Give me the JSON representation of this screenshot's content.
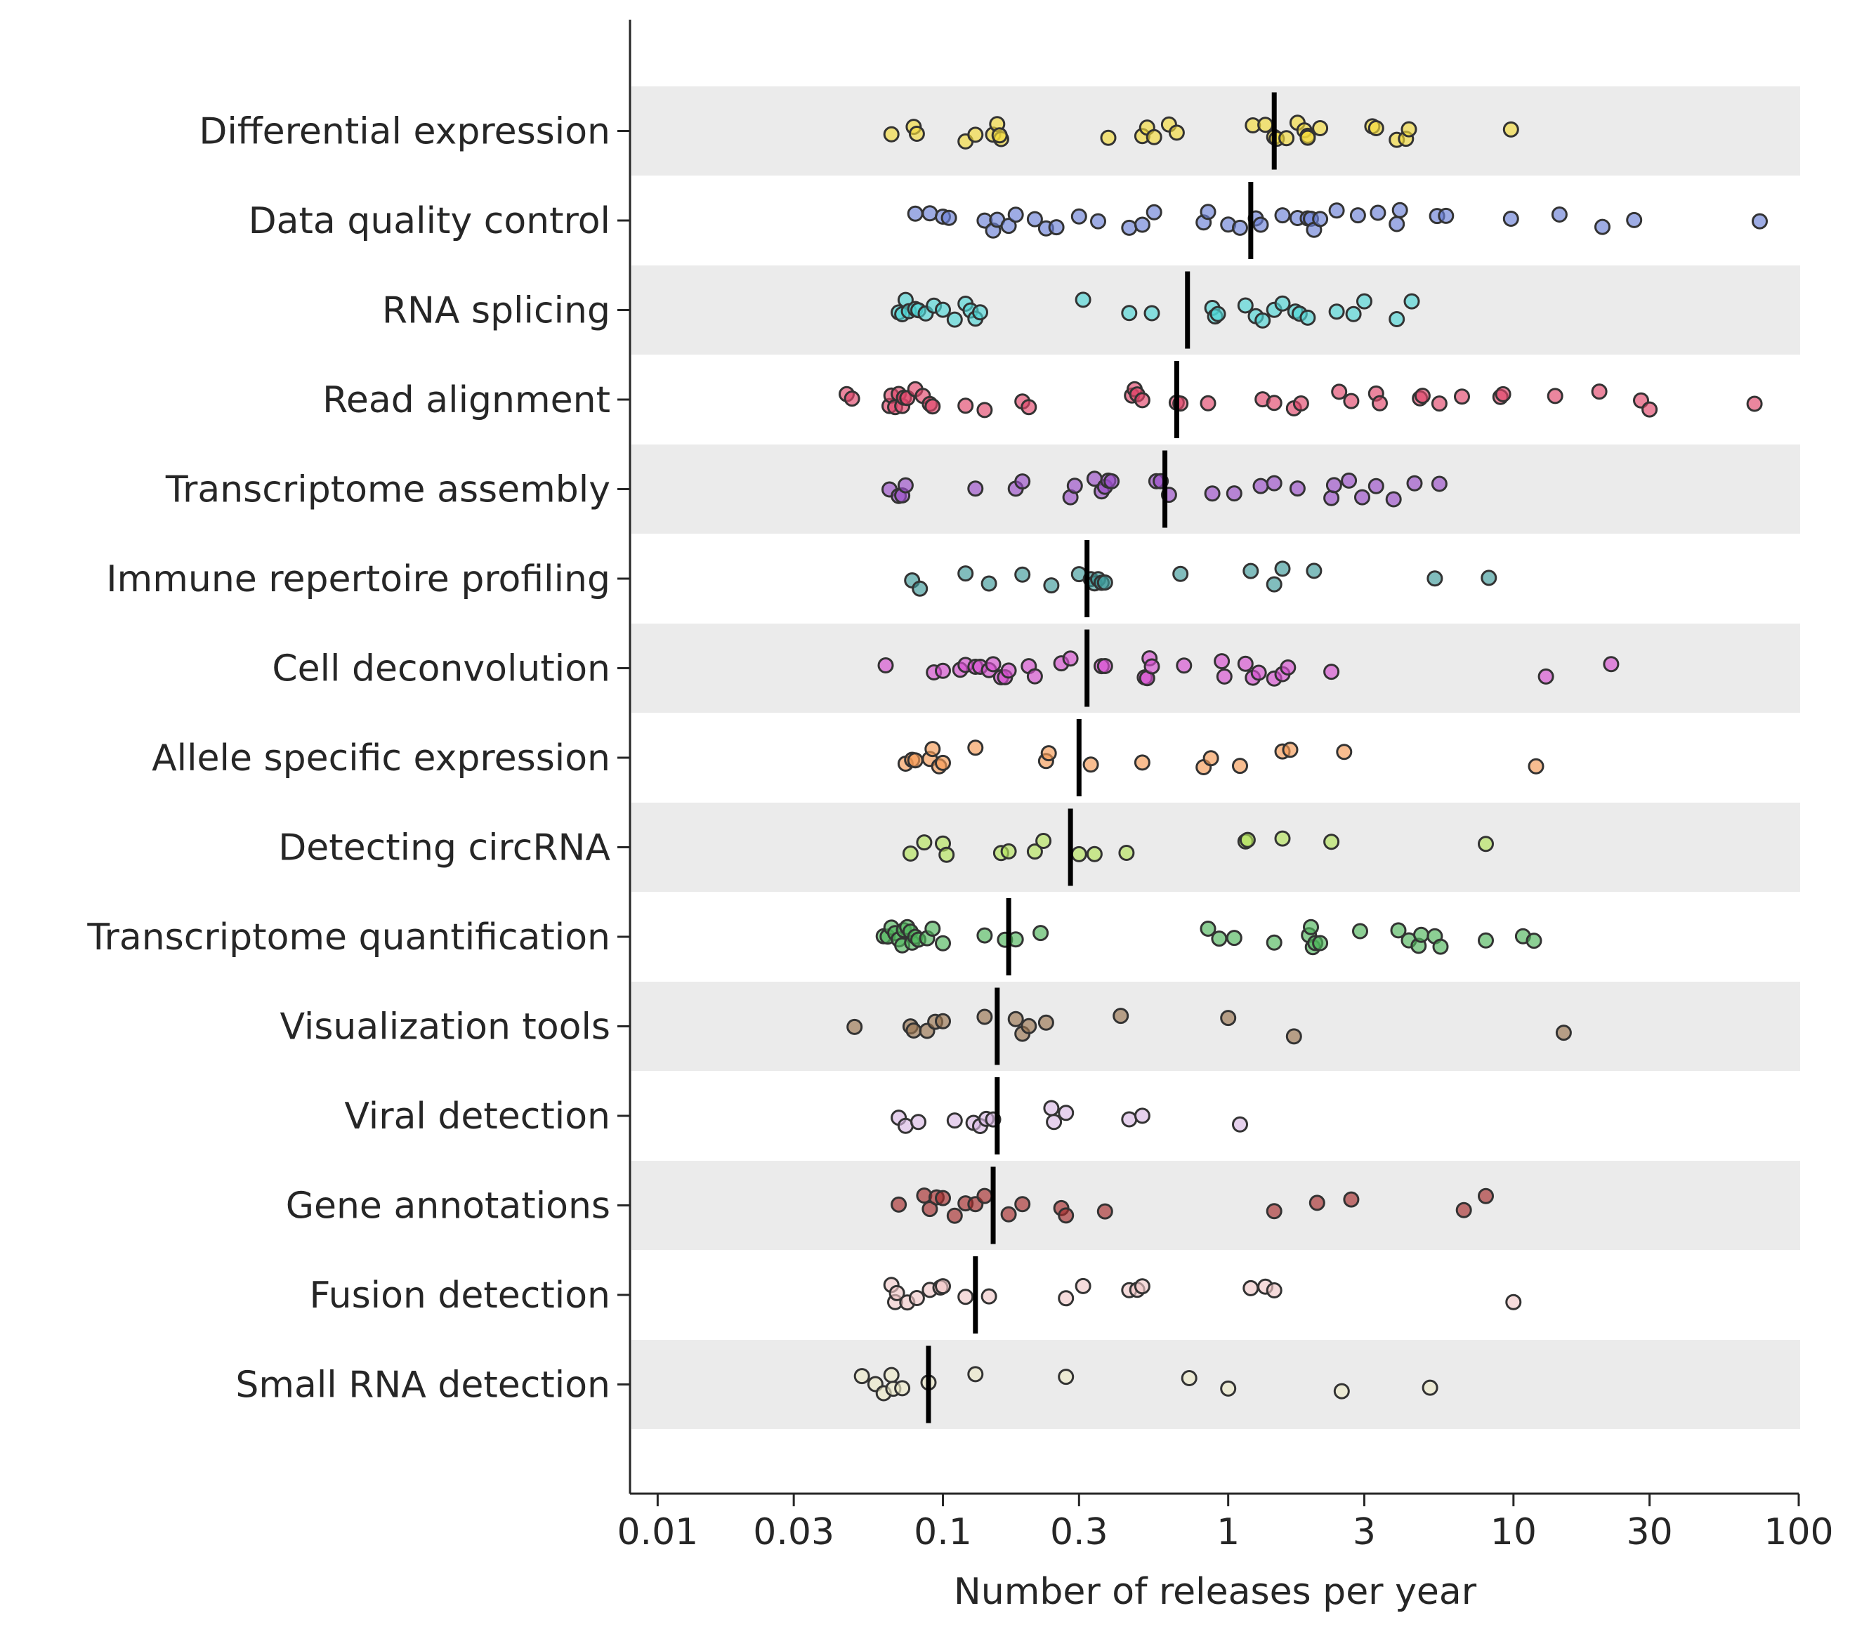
{
  "chart_data": {
    "type": "scatter",
    "orientation": "horizontal",
    "xlabel": "Number of releases per year",
    "ylabel": "",
    "x_scale": "log",
    "xlim": [
      0.008,
      100
    ],
    "xticks": [
      0.01,
      0.03,
      0.1,
      0.3,
      1,
      3,
      10,
      30,
      100
    ],
    "xtick_labels": [
      "0.01",
      "0.03",
      "0.1",
      "0.3",
      "1",
      "3",
      "10",
      "30",
      "100"
    ],
    "grid": false,
    "band_colors": [
      "#ebebeb",
      "#ffffff"
    ],
    "median_marker": "vertical black line",
    "categories": [
      {
        "name": "Differential expression",
        "color": "#f2da3a",
        "median": 1.45,
        "points": [
          0.066,
          0.079,
          0.081,
          0.12,
          0.13,
          0.15,
          0.155,
          0.16,
          0.158,
          0.38,
          0.5,
          0.52,
          0.55,
          0.62,
          0.66,
          1.22,
          1.35,
          1.45,
          1.48,
          1.6,
          1.75,
          1.85,
          1.9,
          2.1,
          3.2,
          3.3,
          3.9,
          4.2,
          4.3,
          9.8,
          1.9
        ]
      },
      {
        "name": "Data quality control",
        "color": "#6a7fd6",
        "median": 1.2,
        "points": [
          0.08,
          0.09,
          0.1,
          0.105,
          0.14,
          0.15,
          0.155,
          0.17,
          0.18,
          0.21,
          0.23,
          0.25,
          0.3,
          0.35,
          0.45,
          0.5,
          0.55,
          0.82,
          0.85,
          1.0,
          1.25,
          1.3,
          1.55,
          1.75,
          1.9,
          1.95,
          2.0,
          2.1,
          2.4,
          2.85,
          3.35,
          3.9,
          4.0,
          5.4,
          5.8,
          9.8,
          14.5,
          20.5,
          26.5,
          73.0,
          1.1
        ]
      },
      {
        "name": "RNA splicing",
        "color": "#4fd6d6",
        "median": 0.72,
        "points": [
          0.07,
          0.072,
          0.074,
          0.076,
          0.08,
          0.082,
          0.087,
          0.093,
          0.1,
          0.11,
          0.12,
          0.125,
          0.13,
          0.135,
          0.31,
          0.45,
          0.54,
          0.88,
          0.9,
          0.92,
          1.15,
          1.25,
          1.32,
          1.45,
          1.55,
          1.72,
          1.78,
          1.9,
          2.4,
          2.75,
          3.0,
          3.9,
          4.4
        ]
      },
      {
        "name": "Read alignment",
        "color": "#e0456a",
        "median": 0.66,
        "points": [
          0.046,
          0.048,
          0.065,
          0.066,
          0.068,
          0.07,
          0.072,
          0.073,
          0.075,
          0.08,
          0.085,
          0.09,
          0.092,
          0.12,
          0.14,
          0.19,
          0.2,
          0.46,
          0.47,
          0.48,
          0.5,
          0.66,
          0.68,
          0.85,
          1.32,
          1.45,
          1.7,
          1.8,
          2.45,
          2.7,
          3.3,
          3.4,
          4.7,
          4.8,
          5.5,
          6.6,
          9.0,
          9.2,
          14.0,
          20.0,
          28.0,
          30.0,
          70.0
        ]
      },
      {
        "name": "Transcriptome assembly",
        "color": "#9a4dc8",
        "median": 0.6,
        "points": [
          0.065,
          0.07,
          0.072,
          0.074,
          0.13,
          0.18,
          0.19,
          0.28,
          0.29,
          0.34,
          0.36,
          0.37,
          0.38,
          0.39,
          0.56,
          0.58,
          0.62,
          0.88,
          1.05,
          1.3,
          1.45,
          1.75,
          2.3,
          2.35,
          2.65,
          2.95,
          3.3,
          3.8,
          4.5,
          5.5
        ]
      },
      {
        "name": "Immune repertoire profiling",
        "color": "#3e9a9a",
        "median": 0.32,
        "points": [
          0.078,
          0.083,
          0.12,
          0.145,
          0.19,
          0.24,
          0.3,
          0.33,
          0.34,
          0.35,
          0.36,
          0.37,
          0.68,
          1.2,
          1.45,
          1.55,
          2.0,
          5.3,
          8.2
        ]
      },
      {
        "name": "Cell deconvolution",
        "color": "#d64fcf",
        "median": 0.32,
        "points": [
          0.063,
          0.093,
          0.1,
          0.115,
          0.12,
          0.13,
          0.135,
          0.145,
          0.15,
          0.16,
          0.165,
          0.17,
          0.2,
          0.21,
          0.26,
          0.28,
          0.36,
          0.37,
          0.51,
          0.52,
          0.53,
          0.54,
          0.7,
          0.95,
          0.97,
          1.15,
          1.22,
          1.28,
          1.45,
          1.55,
          1.62,
          2.3,
          13.0,
          22.0
        ]
      },
      {
        "name": "Allele specific expression",
        "color": "#f59a55",
        "median": 0.3,
        "points": [
          0.074,
          0.078,
          0.08,
          0.09,
          0.092,
          0.097,
          0.1,
          0.13,
          0.23,
          0.235,
          0.33,
          0.5,
          0.82,
          0.87,
          1.1,
          1.55,
          1.65,
          2.55,
          12.0
        ]
      },
      {
        "name": "Detecting circRNA",
        "color": "#b3e35a",
        "median": 0.28,
        "points": [
          0.077,
          0.086,
          0.1,
          0.103,
          0.16,
          0.17,
          0.21,
          0.225,
          0.3,
          0.34,
          0.44,
          1.15,
          1.17,
          1.55,
          2.3,
          8.0
        ]
      },
      {
        "name": "Transcriptome quantification",
        "color": "#4fb55a",
        "median": 0.17,
        "points": [
          0.062,
          0.064,
          0.066,
          0.068,
          0.07,
          0.072,
          0.073,
          0.075,
          0.077,
          0.078,
          0.08,
          0.082,
          0.088,
          0.092,
          0.1,
          0.14,
          0.165,
          0.18,
          0.22,
          0.85,
          0.93,
          1.05,
          1.45,
          1.92,
          1.95,
          1.98,
          2.02,
          2.1,
          2.9,
          3.95,
          4.3,
          4.65,
          4.75,
          5.3,
          5.55,
          8.0,
          10.8,
          11.8
        ]
      },
      {
        "name": "Visualization tools",
        "color": "#9a7550",
        "median": 0.155,
        "points": [
          0.049,
          0.077,
          0.079,
          0.088,
          0.094,
          0.1,
          0.14,
          0.18,
          0.19,
          0.2,
          0.23,
          0.42,
          1.0,
          1.7,
          15.0
        ]
      },
      {
        "name": "Viral detection",
        "color": "#d9b8e3",
        "median": 0.155,
        "points": [
          0.07,
          0.074,
          0.082,
          0.11,
          0.128,
          0.135,
          0.142,
          0.15,
          0.24,
          0.245,
          0.27,
          0.45,
          0.5,
          1.1
        ]
      },
      {
        "name": "Gene annotations",
        "color": "#a62d2d",
        "median": 0.15,
        "points": [
          0.07,
          0.086,
          0.09,
          0.095,
          0.1,
          0.11,
          0.12,
          0.13,
          0.14,
          0.17,
          0.19,
          0.26,
          0.27,
          0.37,
          1.45,
          2.05,
          2.7,
          6.7,
          8.0
        ]
      },
      {
        "name": "Fusion detection",
        "color": "#f0c8c8",
        "median": 0.13,
        "points": [
          0.066,
          0.068,
          0.069,
          0.075,
          0.081,
          0.09,
          0.098,
          0.1,
          0.12,
          0.145,
          0.27,
          0.31,
          0.45,
          0.48,
          0.5,
          1.2,
          1.35,
          1.45,
          10.0
        ]
      },
      {
        "name": "Small RNA detection",
        "color": "#eceac8",
        "median": 0.089,
        "points": [
          0.052,
          0.058,
          0.062,
          0.066,
          0.067,
          0.072,
          0.089,
          0.13,
          0.27,
          0.73,
          1.0,
          2.5,
          5.1
        ]
      }
    ]
  }
}
